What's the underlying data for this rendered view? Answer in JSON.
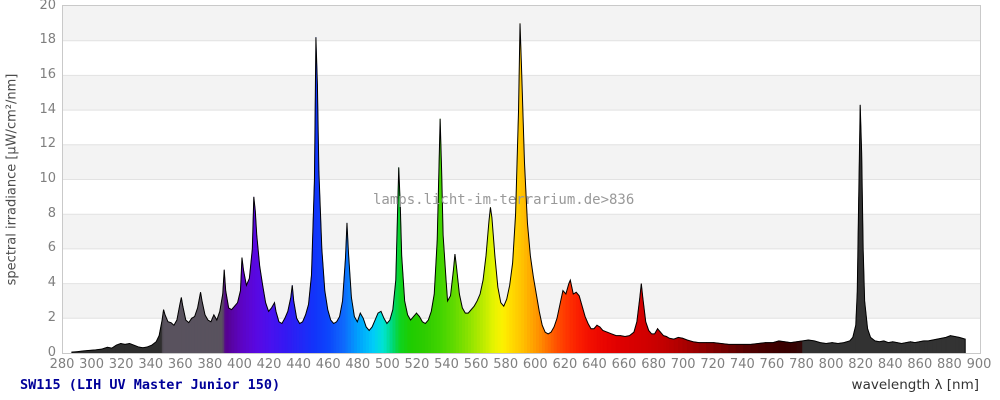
{
  "chart_data": {
    "type": "area",
    "title": "SW115 (LIH UV Master Junior 150)",
    "title_color": "#000099",
    "xlabel": "wavelength λ [nm]",
    "ylabel": "spectral irradiance [µW/cm²/nm]",
    "watermark": "lamps.licht-im-terrarium.de>836",
    "xlim": [
      280,
      900
    ],
    "ylim": [
      0,
      20
    ],
    "x_tick_step": 20,
    "y_tick_step": 2,
    "grid": "horizontal-bands",
    "band_colors": [
      "#f3f3f3",
      "#ffffff"
    ],
    "gridline_color": "#e2e2e2",
    "outline_color": "#000000",
    "legend": "none",
    "series_name": "spectral irradiance",
    "main_peaks": [
      {
        "nm": 350,
        "uW": 2.5
      },
      {
        "nm": 360,
        "uW": 3.2
      },
      {
        "nm": 373,
        "uW": 3.5
      },
      {
        "nm": 389,
        "uW": 4.8
      },
      {
        "nm": 401,
        "uW": 5.5
      },
      {
        "nm": 409,
        "uW": 9.0
      },
      {
        "nm": 435,
        "uW": 3.9
      },
      {
        "nm": 451,
        "uW": 18.2
      },
      {
        "nm": 472,
        "uW": 7.5
      },
      {
        "nm": 507,
        "uW": 10.7
      },
      {
        "nm": 535,
        "uW": 13.5
      },
      {
        "nm": 545,
        "uW": 5.7
      },
      {
        "nm": 569,
        "uW": 8.4
      },
      {
        "nm": 589,
        "uW": 19.0
      },
      {
        "nm": 623,
        "uW": 4.2
      },
      {
        "nm": 671,
        "uW": 4.0
      },
      {
        "nm": 819,
        "uW": 14.3
      }
    ],
    "points": [
      [
        286,
        0.05
      ],
      [
        290,
        0.08
      ],
      [
        294,
        0.12
      ],
      [
        298,
        0.15
      ],
      [
        302,
        0.18
      ],
      [
        306,
        0.22
      ],
      [
        310,
        0.33
      ],
      [
        313,
        0.28
      ],
      [
        316,
        0.45
      ],
      [
        319,
        0.55
      ],
      [
        322,
        0.5
      ],
      [
        325,
        0.55
      ],
      [
        328,
        0.45
      ],
      [
        331,
        0.35
      ],
      [
        334,
        0.3
      ],
      [
        337,
        0.35
      ],
      [
        340,
        0.45
      ],
      [
        343,
        0.65
      ],
      [
        345,
        1.0
      ],
      [
        347,
        1.9
      ],
      [
        348,
        2.5
      ],
      [
        349,
        2.2
      ],
      [
        351,
        1.8
      ],
      [
        353,
        1.75
      ],
      [
        355,
        1.6
      ],
      [
        357,
        1.9
      ],
      [
        359,
        2.8
      ],
      [
        360,
        3.2
      ],
      [
        361,
        2.7
      ],
      [
        363,
        1.9
      ],
      [
        365,
        1.75
      ],
      [
        367,
        2.0
      ],
      [
        369,
        2.1
      ],
      [
        371,
        2.6
      ],
      [
        373,
        3.5
      ],
      [
        374,
        3.0
      ],
      [
        376,
        2.2
      ],
      [
        378,
        1.9
      ],
      [
        380,
        1.8
      ],
      [
        382,
        2.2
      ],
      [
        384,
        1.9
      ],
      [
        386,
        2.4
      ],
      [
        388,
        3.4
      ],
      [
        389,
        4.8
      ],
      [
        390,
        3.6
      ],
      [
        392,
        2.6
      ],
      [
        394,
        2.5
      ],
      [
        396,
        2.7
      ],
      [
        398,
        2.9
      ],
      [
        400,
        3.6
      ],
      [
        401,
        5.5
      ],
      [
        402,
        4.8
      ],
      [
        404,
        3.9
      ],
      [
        406,
        4.3
      ],
      [
        408,
        6.0
      ],
      [
        409,
        9.0
      ],
      [
        410,
        8.2
      ],
      [
        411,
        6.8
      ],
      [
        413,
        5.0
      ],
      [
        415,
        3.9
      ],
      [
        417,
        2.9
      ],
      [
        419,
        2.4
      ],
      [
        421,
        2.6
      ],
      [
        423,
        2.9
      ],
      [
        424,
        2.4
      ],
      [
        426,
        1.8
      ],
      [
        428,
        1.7
      ],
      [
        430,
        2.0
      ],
      [
        432,
        2.4
      ],
      [
        434,
        3.2
      ],
      [
        435,
        3.9
      ],
      [
        436,
        3.0
      ],
      [
        438,
        2.0
      ],
      [
        440,
        1.7
      ],
      [
        442,
        1.8
      ],
      [
        444,
        2.2
      ],
      [
        446,
        2.8
      ],
      [
        448,
        4.5
      ],
      [
        450,
        10.0
      ],
      [
        451,
        18.2
      ],
      [
        452,
        15.5
      ],
      [
        453,
        10.5
      ],
      [
        455,
        6.0
      ],
      [
        457,
        3.6
      ],
      [
        459,
        2.5
      ],
      [
        461,
        1.9
      ],
      [
        463,
        1.7
      ],
      [
        465,
        1.8
      ],
      [
        467,
        2.1
      ],
      [
        469,
        3.0
      ],
      [
        471,
        5.5
      ],
      [
        472,
        7.5
      ],
      [
        473,
        5.8
      ],
      [
        475,
        3.2
      ],
      [
        477,
        2.1
      ],
      [
        479,
        1.8
      ],
      [
        481,
        2.3
      ],
      [
        483,
        2.0
      ],
      [
        485,
        1.5
      ],
      [
        487,
        1.3
      ],
      [
        489,
        1.5
      ],
      [
        491,
        1.9
      ],
      [
        493,
        2.3
      ],
      [
        495,
        2.4
      ],
      [
        497,
        2.0
      ],
      [
        499,
        1.7
      ],
      [
        501,
        1.9
      ],
      [
        503,
        2.5
      ],
      [
        505,
        4.2
      ],
      [
        507,
        10.7
      ],
      [
        508,
        8.6
      ],
      [
        509,
        5.6
      ],
      [
        511,
        3.0
      ],
      [
        513,
        2.2
      ],
      [
        515,
        1.9
      ],
      [
        517,
        2.1
      ],
      [
        519,
        2.3
      ],
      [
        521,
        2.1
      ],
      [
        523,
        1.8
      ],
      [
        525,
        1.7
      ],
      [
        527,
        1.9
      ],
      [
        529,
        2.4
      ],
      [
        531,
        3.4
      ],
      [
        533,
        6.5
      ],
      [
        535,
        13.5
      ],
      [
        536,
        10.5
      ],
      [
        537,
        6.8
      ],
      [
        539,
        4.2
      ],
      [
        540,
        3.0
      ],
      [
        542,
        3.3
      ],
      [
        544,
        4.8
      ],
      [
        545,
        5.7
      ],
      [
        546,
        5.0
      ],
      [
        548,
        3.4
      ],
      [
        550,
        2.6
      ],
      [
        552,
        2.3
      ],
      [
        554,
        2.3
      ],
      [
        556,
        2.5
      ],
      [
        558,
        2.7
      ],
      [
        560,
        3.0
      ],
      [
        562,
        3.4
      ],
      [
        564,
        4.2
      ],
      [
        566,
        5.6
      ],
      [
        568,
        7.6
      ],
      [
        569,
        8.4
      ],
      [
        570,
        7.8
      ],
      [
        572,
        5.6
      ],
      [
        574,
        3.8
      ],
      [
        576,
        2.9
      ],
      [
        578,
        2.7
      ],
      [
        580,
        3.1
      ],
      [
        582,
        3.9
      ],
      [
        584,
        5.2
      ],
      [
        586,
        8.0
      ],
      [
        588,
        14.0
      ],
      [
        589,
        19.0
      ],
      [
        590,
        16.5
      ],
      [
        592,
        11.0
      ],
      [
        594,
        7.5
      ],
      [
        596,
        5.6
      ],
      [
        598,
        4.4
      ],
      [
        600,
        3.4
      ],
      [
        602,
        2.4
      ],
      [
        604,
        1.6
      ],
      [
        606,
        1.2
      ],
      [
        608,
        1.1
      ],
      [
        610,
        1.2
      ],
      [
        612,
        1.5
      ],
      [
        614,
        2.0
      ],
      [
        616,
        2.8
      ],
      [
        618,
        3.6
      ],
      [
        620,
        3.4
      ],
      [
        622,
        4.0
      ],
      [
        623,
        4.2
      ],
      [
        625,
        3.4
      ],
      [
        627,
        3.5
      ],
      [
        629,
        3.3
      ],
      [
        631,
        2.7
      ],
      [
        633,
        2.1
      ],
      [
        635,
        1.7
      ],
      [
        637,
        1.4
      ],
      [
        639,
        1.4
      ],
      [
        641,
        1.6
      ],
      [
        643,
        1.5
      ],
      [
        645,
        1.3
      ],
      [
        648,
        1.2
      ],
      [
        651,
        1.1
      ],
      [
        654,
        1.0
      ],
      [
        657,
        1.0
      ],
      [
        660,
        0.95
      ],
      [
        663,
        1.0
      ],
      [
        666,
        1.2
      ],
      [
        668,
        1.8
      ],
      [
        670,
        3.2
      ],
      [
        671,
        4.0
      ],
      [
        672,
        3.2
      ],
      [
        674,
        1.8
      ],
      [
        676,
        1.3
      ],
      [
        678,
        1.1
      ],
      [
        680,
        1.1
      ],
      [
        682,
        1.4
      ],
      [
        684,
        1.2
      ],
      [
        686,
        1.0
      ],
      [
        688,
        0.95
      ],
      [
        690,
        0.85
      ],
      [
        693,
        0.8
      ],
      [
        696,
        0.9
      ],
      [
        699,
        0.85
      ],
      [
        702,
        0.75
      ],
      [
        706,
        0.65
      ],
      [
        710,
        0.6
      ],
      [
        715,
        0.6
      ],
      [
        720,
        0.6
      ],
      [
        725,
        0.55
      ],
      [
        730,
        0.5
      ],
      [
        735,
        0.5
      ],
      [
        740,
        0.5
      ],
      [
        745,
        0.5
      ],
      [
        750,
        0.55
      ],
      [
        755,
        0.6
      ],
      [
        760,
        0.6
      ],
      [
        764,
        0.7
      ],
      [
        768,
        0.65
      ],
      [
        772,
        0.6
      ],
      [
        776,
        0.65
      ],
      [
        780,
        0.7
      ],
      [
        784,
        0.75
      ],
      [
        788,
        0.7
      ],
      [
        792,
        0.6
      ],
      [
        796,
        0.55
      ],
      [
        800,
        0.6
      ],
      [
        804,
        0.55
      ],
      [
        808,
        0.6
      ],
      [
        812,
        0.7
      ],
      [
        814,
        0.9
      ],
      [
        816,
        1.6
      ],
      [
        817,
        3.5
      ],
      [
        818,
        9.0
      ],
      [
        819,
        14.3
      ],
      [
        820,
        11.5
      ],
      [
        821,
        6.0
      ],
      [
        822,
        3.0
      ],
      [
        824,
        1.4
      ],
      [
        826,
        0.9
      ],
      [
        829,
        0.7
      ],
      [
        832,
        0.65
      ],
      [
        835,
        0.7
      ],
      [
        838,
        0.6
      ],
      [
        841,
        0.65
      ],
      [
        844,
        0.6
      ],
      [
        847,
        0.55
      ],
      [
        850,
        0.6
      ],
      [
        853,
        0.65
      ],
      [
        856,
        0.6
      ],
      [
        859,
        0.65
      ],
      [
        862,
        0.7
      ],
      [
        865,
        0.7
      ],
      [
        868,
        0.75
      ],
      [
        871,
        0.8
      ],
      [
        874,
        0.85
      ],
      [
        877,
        0.9
      ],
      [
        880,
        1.0
      ],
      [
        883,
        0.95
      ],
      [
        886,
        0.9
      ],
      [
        888,
        0.85
      ],
      [
        890,
        0.8
      ]
    ],
    "color_map": [
      [
        280,
        "#2e2e2e"
      ],
      [
        346,
        "#2e2e2e"
      ],
      [
        348,
        "#59525e"
      ],
      [
        388,
        "#59525e"
      ],
      [
        390,
        "#55028d"
      ],
      [
        400,
        "#5c04c0"
      ],
      [
        410,
        "#5a08e0"
      ],
      [
        420,
        "#4a10ee"
      ],
      [
        430,
        "#3618f2"
      ],
      [
        440,
        "#2426f6"
      ],
      [
        450,
        "#1233fa"
      ],
      [
        460,
        "#0d47fb"
      ],
      [
        470,
        "#0f6afc"
      ],
      [
        480,
        "#00a2fd"
      ],
      [
        490,
        "#00ccf8"
      ],
      [
        497,
        "#00e4d0"
      ],
      [
        503,
        "#00d878"
      ],
      [
        508,
        "#0ed321"
      ],
      [
        515,
        "#1ecc00"
      ],
      [
        525,
        "#2ecc00"
      ],
      [
        535,
        "#41d400"
      ],
      [
        545,
        "#63da00"
      ],
      [
        555,
        "#8ee300"
      ],
      [
        565,
        "#c0ec00"
      ],
      [
        572,
        "#e8f400"
      ],
      [
        578,
        "#fdf000"
      ],
      [
        584,
        "#ffd800"
      ],
      [
        590,
        "#ffc400"
      ],
      [
        596,
        "#ffaa00"
      ],
      [
        602,
        "#ff9000"
      ],
      [
        608,
        "#ff7000"
      ],
      [
        614,
        "#ff5000"
      ],
      [
        620,
        "#ff3800"
      ],
      [
        628,
        "#fb2000"
      ],
      [
        636,
        "#f31000"
      ],
      [
        645,
        "#ea0600"
      ],
      [
        655,
        "#e00000"
      ],
      [
        665,
        "#d80000"
      ],
      [
        675,
        "#d00000"
      ],
      [
        685,
        "#c40000"
      ],
      [
        695,
        "#b40000"
      ],
      [
        705,
        "#a00000"
      ],
      [
        715,
        "#8c0000"
      ],
      [
        725,
        "#780000"
      ],
      [
        735,
        "#620000"
      ],
      [
        745,
        "#500000"
      ],
      [
        755,
        "#440000"
      ],
      [
        765,
        "#3b0000"
      ],
      [
        775,
        "#340202"
      ],
      [
        779,
        "#320808"
      ],
      [
        781,
        "#323232"
      ],
      [
        900,
        "#333333"
      ]
    ]
  }
}
